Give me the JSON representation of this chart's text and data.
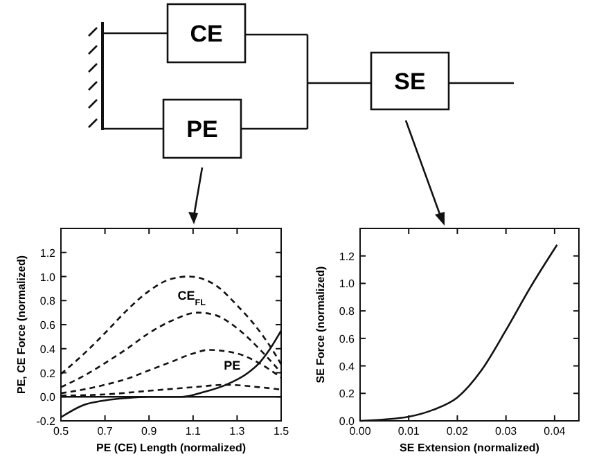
{
  "chart_data": [
    {
      "type": "other",
      "annotations": [
        "CE",
        "PE",
        "SE"
      ]
    },
    {
      "type": "line",
      "xlabel": "PE (CE) Length (normalized)",
      "ylabel": "PE, CE Force (normalized)",
      "xlim": [
        0.5,
        1.5
      ],
      "xticks": [
        0.5,
        0.7,
        0.9,
        1.1,
        1.3,
        1.5
      ],
      "ylim": [
        -0.2,
        1.4
      ],
      "yticks": [
        {
          "value": -0.2,
          "label": "-0.2"
        },
        {
          "value": 0,
          "label": "0.0"
        },
        {
          "value": 0.2,
          "label": "0.2"
        },
        {
          "value": 0.4,
          "label": "0.4"
        },
        {
          "value": 0.6,
          "label": "0.6"
        },
        {
          "value": 0.8,
          "label": "0.8"
        },
        {
          "value": 1,
          "label": "1.0"
        },
        {
          "value": 1.2,
          "label": "1.2"
        }
      ],
      "series": [
        {
          "color": "#111111",
          "line_style": "dashed",
          "x": [
            0.5,
            0.6,
            0.7,
            0.8,
            0.9,
            1.0,
            1.08,
            1.2,
            1.3,
            1.4,
            1.45,
            1.5
          ],
          "values": [
            0.19,
            0.35,
            0.53,
            0.72,
            0.88,
            0.98,
            1.0,
            0.93,
            0.76,
            0.55,
            0.42,
            0.27
          ]
        },
        {
          "color": "#111111",
          "line_style": "dashed",
          "x": [
            0.5,
            0.6,
            0.7,
            0.8,
            0.9,
            1.0,
            1.12,
            1.2,
            1.3,
            1.4,
            1.5
          ],
          "values": [
            0.08,
            0.17,
            0.28,
            0.4,
            0.53,
            0.63,
            0.7,
            0.68,
            0.57,
            0.4,
            0.2
          ]
        },
        {
          "color": "#111111",
          "line_style": "dashed",
          "x": [
            0.5,
            0.6,
            0.7,
            0.8,
            0.9,
            1.0,
            1.1,
            1.17,
            1.3,
            1.4,
            1.5
          ],
          "values": [
            0.03,
            0.06,
            0.1,
            0.15,
            0.22,
            0.29,
            0.36,
            0.39,
            0.36,
            0.28,
            0.16
          ]
        },
        {
          "color": "#111111",
          "line_style": "dashed",
          "x": [
            0.5,
            0.7,
            0.9,
            1.1,
            1.25,
            1.4,
            1.5
          ],
          "values": [
            0.01,
            0.02,
            0.05,
            0.08,
            0.1,
            0.08,
            0.06
          ]
        },
        {
          "color": "#111111",
          "line_style": "solid",
          "x": [
            0.5,
            0.6,
            0.7,
            0.8,
            0.9,
            1.05,
            1.15,
            1.25,
            1.35,
            1.4,
            1.45,
            1.5
          ],
          "values": [
            -0.17,
            -0.07,
            -0.03,
            -0.01,
            0.0,
            0.0,
            0.04,
            0.1,
            0.2,
            0.28,
            0.4,
            0.55
          ]
        }
      ],
      "ref_lines": [
        {
          "axis": "y",
          "value": 0,
          "color": "#111111"
        }
      ],
      "annotations": [
        "CE$_{FL}$",
        "PE"
      ]
    },
    {
      "type": "line",
      "xlabel": "SE Extension (normalized)",
      "ylabel": "SE Force (normalized)",
      "xlim": [
        0,
        0.045
      ],
      "xticks": [
        {
          "value": 0,
          "label": "0.00"
        },
        {
          "value": 0.01,
          "label": "0.01"
        },
        {
          "value": 0.02,
          "label": "0.02"
        },
        {
          "value": 0.03,
          "label": "0.03"
        },
        {
          "value": 0.04,
          "label": "0.04"
        }
      ],
      "ylim": [
        0,
        1.4
      ],
      "yticks": [
        {
          "value": 0,
          "label": "0.0"
        },
        {
          "value": 0.2,
          "label": "0.2"
        },
        {
          "value": 0.4,
          "label": "0.4"
        },
        {
          "value": 0.6,
          "label": "0.6"
        },
        {
          "value": 0.8,
          "label": "0.8"
        },
        {
          "value": 1,
          "label": "1.0"
        },
        {
          "value": 1.2,
          "label": "1.2"
        }
      ],
      "series": [
        {
          "color": "#111111",
          "line_style": "solid",
          "x": [
            0,
            0.005,
            0.01,
            0.015,
            0.02,
            0.025,
            0.03,
            0.035,
            0.0405
          ],
          "values": [
            0,
            0.01,
            0.03,
            0.08,
            0.17,
            0.37,
            0.66,
            0.97,
            1.28
          ]
        }
      ]
    }
  ]
}
